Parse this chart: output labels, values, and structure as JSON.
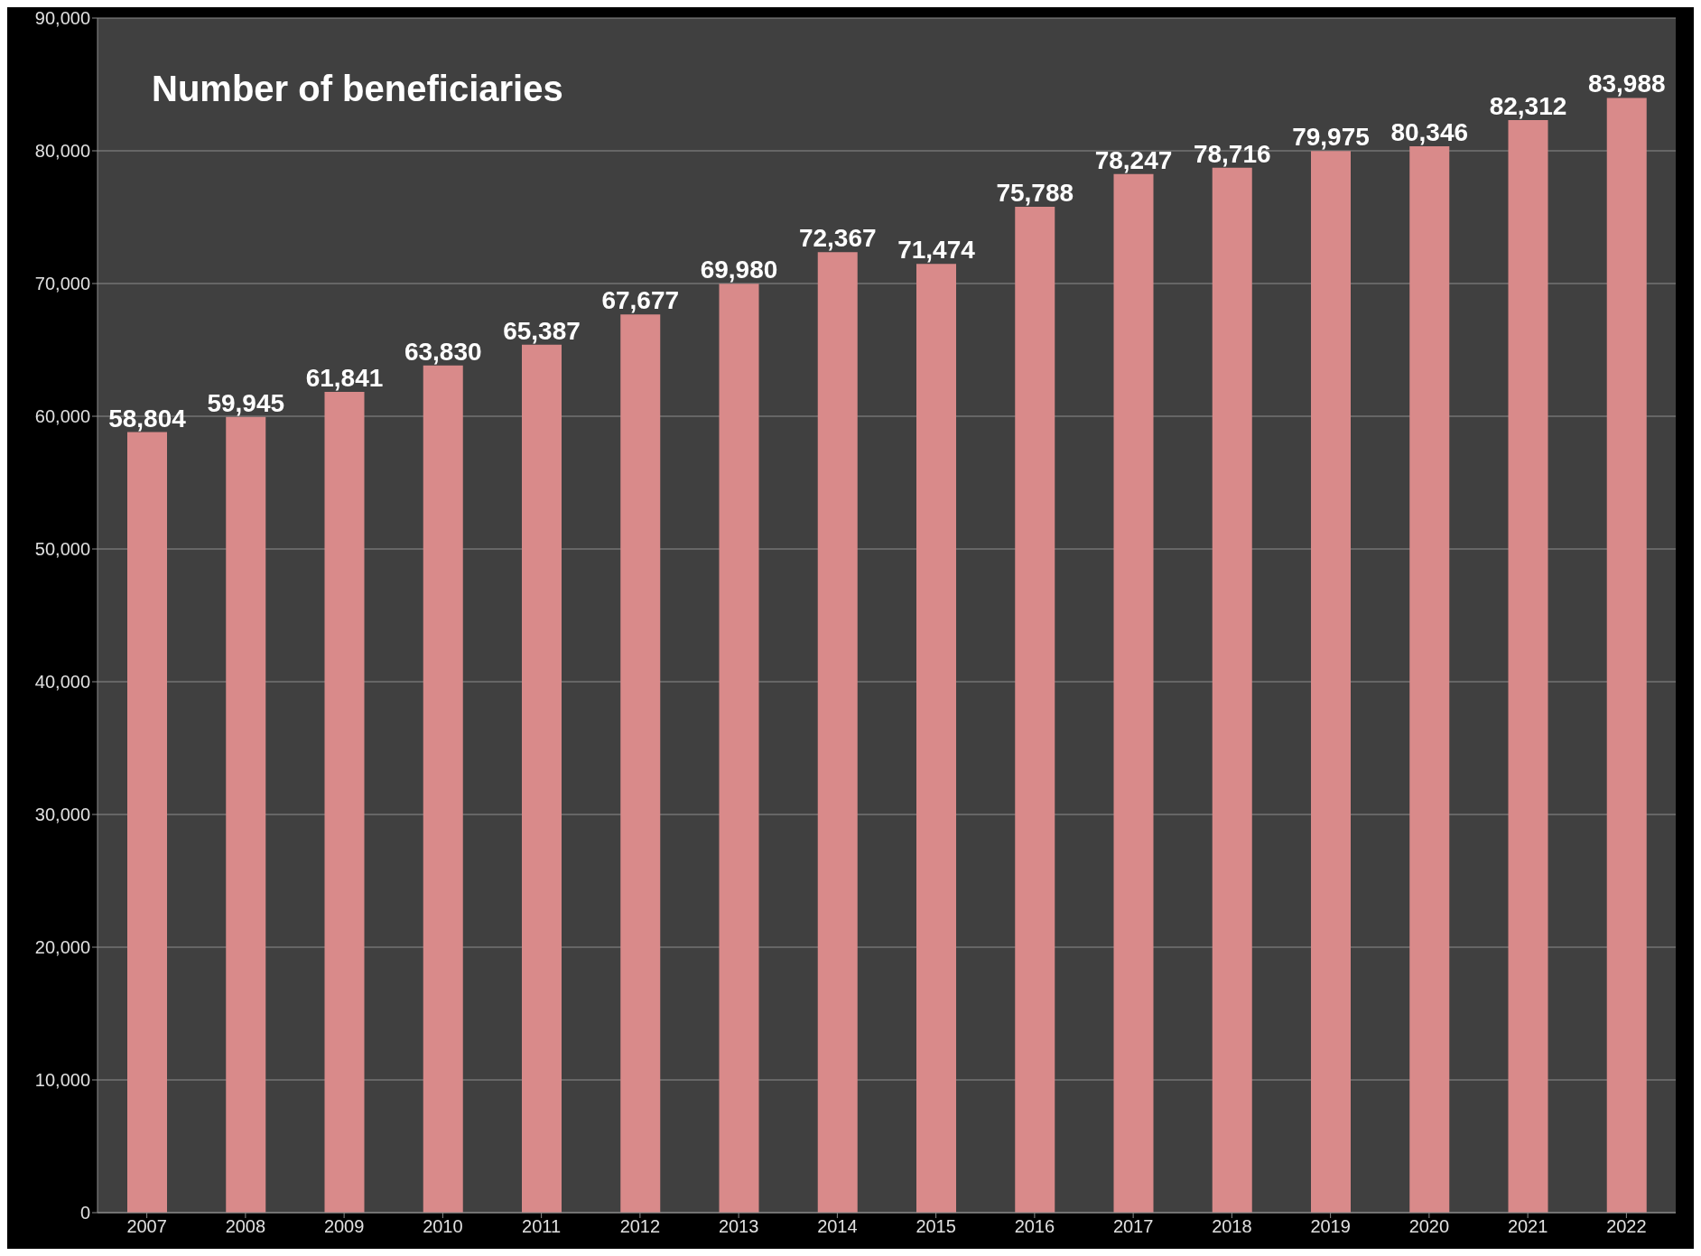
{
  "chart_data": {
    "type": "bar",
    "title": "Number of beneficiaries",
    "categories": [
      "2007",
      "2008",
      "2009",
      "2010",
      "2011",
      "2012",
      "2013",
      "2014",
      "2015",
      "2016",
      "2017",
      "2018",
      "2019",
      "2020",
      "2021",
      "2022"
    ],
    "values": [
      58804,
      59945,
      61841,
      63830,
      65387,
      67677,
      69980,
      72367,
      71474,
      75788,
      78247,
      78716,
      79975,
      80346,
      82312,
      83988
    ],
    "value_labels": [
      "58,804",
      "59,945",
      "61,841",
      "63,830",
      "65,387",
      "67,677",
      "69,980",
      "72,367",
      "71,474",
      "75,788",
      "78,247",
      "78,716",
      "79,975",
      "80,346",
      "82,312",
      "83,988"
    ],
    "color": "#d98a8a",
    "ylim": [
      0,
      90000
    ],
    "yticks": [
      0,
      {
        "value": 10000,
        "label": "10,000"
      },
      {
        "value": 20000,
        "label": "20,000"
      },
      {
        "value": 30000,
        "label": "30,000"
      },
      {
        "value": 40000,
        "label": "40,000"
      },
      {
        "value": 50000,
        "label": "50,000"
      },
      {
        "value": 60000,
        "label": "60,000"
      },
      {
        "value": 70000,
        "label": "70,000"
      },
      {
        "value": 80000,
        "label": "80,000"
      },
      {
        "value": 90000,
        "label": "90,000"
      }
    ],
    "grid": "y"
  }
}
